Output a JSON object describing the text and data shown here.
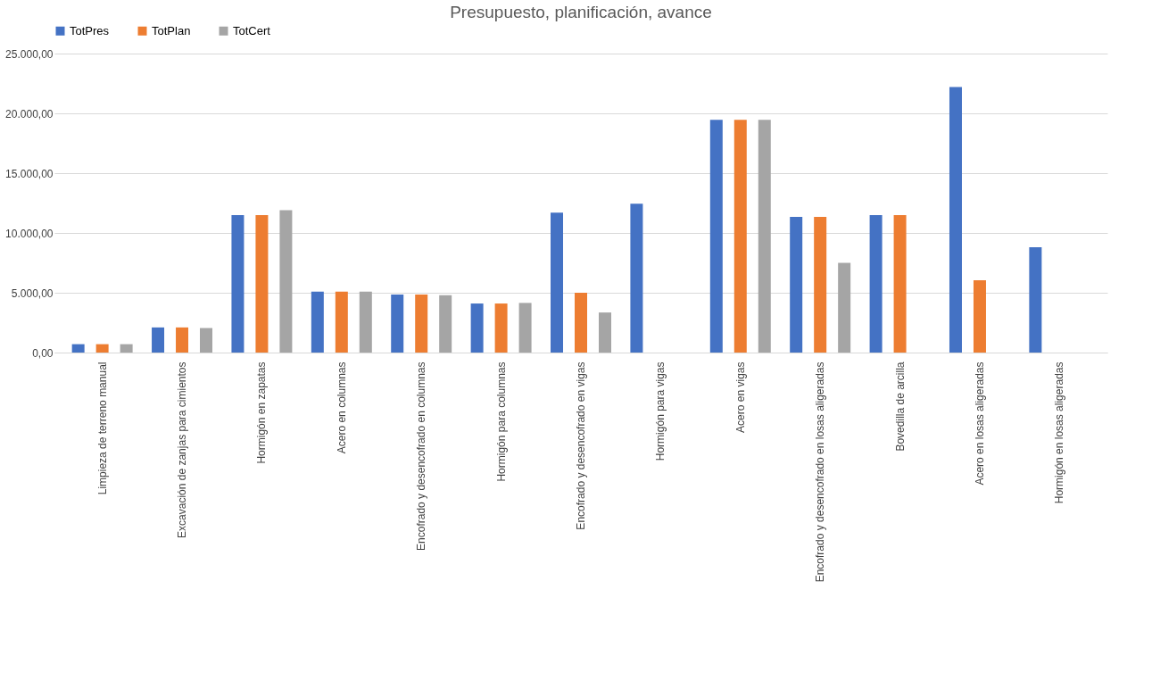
{
  "chart_data": {
    "type": "bar",
    "title": "Presupuesto, planificación, avance",
    "categories": [
      "Limpieza de terreno manual",
      "Excavación de zanjas para cimientos",
      "Hormigón en zapatas",
      "Acero en columnas",
      "Encofrado y desencofrado en columnas",
      "Hormigón para columnas",
      "Encofrado y desencofrado en vigas",
      "Hormigón para vigas",
      "Acero en vigas",
      "Encofrado y desencofrado en losas aligeradas",
      "Bovedilla de arcilla",
      "Acero en losas aligeradas",
      "Hormigón en losas aligeradas"
    ],
    "series": [
      {
        "name": "TotPres",
        "color": "#4472c4",
        "values": [
          700,
          2100,
          11500,
          5100,
          4850,
          4100,
          11700,
          12450,
          19450,
          11350,
          11500,
          22200,
          8800
        ]
      },
      {
        "name": "TotPlan",
        "color": "#ed7d31",
        "values": [
          700,
          2100,
          11500,
          5100,
          4850,
          4100,
          5000,
          0,
          19450,
          11350,
          11500,
          6050,
          0
        ]
      },
      {
        "name": "TotCert",
        "color": "#a5a5a5",
        "values": [
          700,
          2050,
          11900,
          5100,
          4800,
          4150,
          3350,
          0,
          19450,
          7500,
          0,
          0,
          0
        ]
      }
    ],
    "ylim": [
      0,
      25000
    ],
    "yticks": [
      {
        "value": 0,
        "label": "0,00"
      },
      {
        "value": 5000,
        "label": "5.000,00"
      },
      {
        "value": 10000,
        "label": "10.000,00"
      },
      {
        "value": 15000,
        "label": "15.000,00"
      },
      {
        "value": 20000,
        "label": "20.000,00"
      },
      {
        "value": 25000,
        "label": "25.000,00"
      }
    ],
    "grid": "y",
    "legend": "top"
  }
}
